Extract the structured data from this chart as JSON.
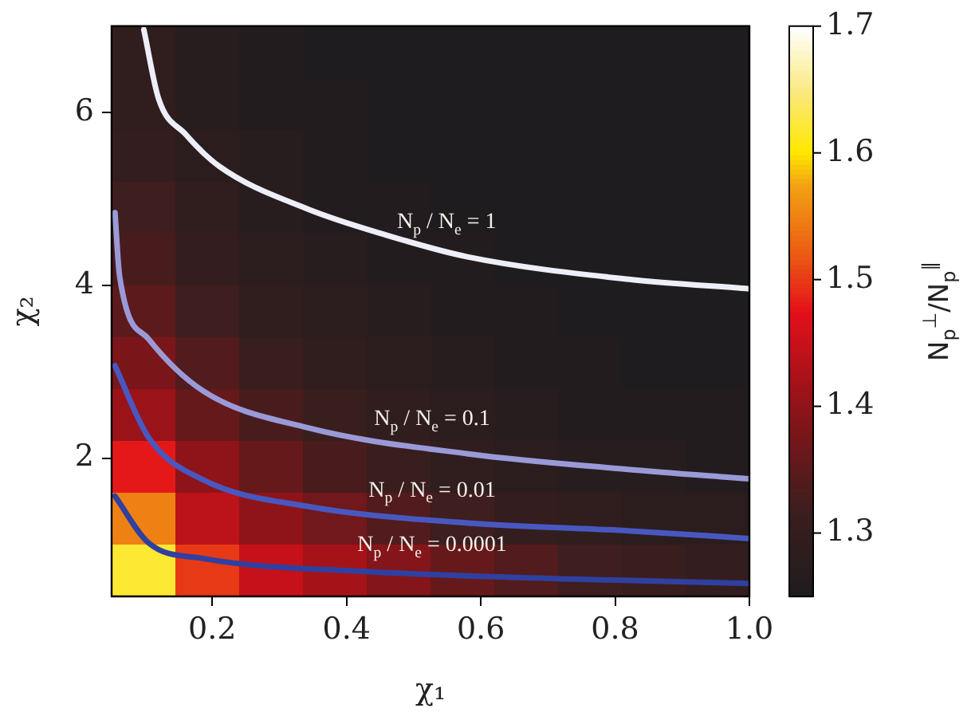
{
  "chart_data": {
    "type": "heatmap",
    "xlabel": "χ₁",
    "ylabel": "χ₂",
    "clabel": "N$_{p}$$^{⊥}$/N$_{p}$$^{∥}$",
    "x": [
      0.0975,
      0.1925,
      0.2875,
      0.3825,
      0.4775,
      0.5725,
      0.6675,
      0.7625,
      0.8575,
      0.9525
    ],
    "xlim": [
      0.05,
      1.0
    ],
    "xticks": [
      {
        "value": 0.2,
        "label": "0.2"
      },
      {
        "value": 0.4,
        "label": "0.4"
      },
      {
        "value": 0.6,
        "label": "0.6"
      },
      {
        "value": 0.8,
        "label": "0.8"
      },
      {
        "value": 1.0,
        "label": "1.0"
      }
    ],
    "ylim": [
      0.4,
      7.0
    ],
    "yticks": [
      2,
      4,
      6
    ],
    "clim": [
      1.25,
      1.7
    ],
    "cticks": [
      {
        "value": 1.3,
        "label": "1.3"
      },
      {
        "value": 1.4,
        "label": "1.4"
      },
      {
        "value": 1.5,
        "label": "1.5"
      },
      {
        "value": 1.6,
        "label": "1.6"
      },
      {
        "value": 1.7,
        "label": "1.7"
      }
    ],
    "cells": [
      [
        1.29,
        1.27,
        1.26,
        1.25,
        1.25,
        1.25,
        1.25,
        1.25,
        1.25,
        1.25
      ],
      [
        1.29,
        1.27,
        1.26,
        1.26,
        1.25,
        1.25,
        1.25,
        1.25,
        1.25,
        1.25
      ],
      [
        1.3,
        1.28,
        1.27,
        1.26,
        1.25,
        1.25,
        1.25,
        1.25,
        1.25,
        1.25
      ],
      [
        1.32,
        1.29,
        1.27,
        1.26,
        1.26,
        1.25,
        1.25,
        1.25,
        1.25,
        1.25
      ],
      [
        1.33,
        1.3,
        1.28,
        1.27,
        1.26,
        1.26,
        1.25,
        1.25,
        1.25,
        1.25
      ],
      [
        1.35,
        1.32,
        1.29,
        1.28,
        1.27,
        1.26,
        1.26,
        1.25,
        1.25,
        1.25
      ],
      [
        1.38,
        1.34,
        1.31,
        1.29,
        1.28,
        1.27,
        1.26,
        1.26,
        1.25,
        1.25
      ],
      [
        1.41,
        1.36,
        1.33,
        1.31,
        1.29,
        1.28,
        1.27,
        1.26,
        1.26,
        1.26
      ],
      [
        1.48,
        1.4,
        1.36,
        1.33,
        1.31,
        1.29,
        1.28,
        1.27,
        1.27,
        1.26
      ],
      [
        1.55,
        1.44,
        1.4,
        1.37,
        1.34,
        1.32,
        1.3,
        1.29,
        1.28,
        1.28
      ],
      [
        1.62,
        1.5,
        1.45,
        1.42,
        1.39,
        1.36,
        1.34,
        1.32,
        1.31,
        1.3
      ]
    ],
    "series": [
      {
        "type": "line",
        "name": "N$_{p}$ / N$_{e}$ = 1",
        "color": "#eeeef8",
        "x": [
          0.098,
          0.12,
          0.16,
          0.21,
          0.34,
          0.46,
          0.58,
          0.82,
          1.0
        ],
        "values": [
          6.96,
          6.16,
          5.75,
          5.38,
          4.89,
          4.58,
          4.33,
          4.07,
          3.96
        ]
      },
      {
        "type": "line",
        "name": "N$_{p}$ / N$_{e}$ = 0.1",
        "color": "#9a9ad8",
        "x": [
          0.055,
          0.062,
          0.105,
          0.186,
          0.343,
          0.581,
          0.819,
          1.0
        ],
        "values": [
          4.84,
          4.1,
          3.38,
          2.78,
          2.35,
          2.05,
          1.87,
          1.76
        ]
      },
      {
        "type": "line",
        "name": "N$_{p}$ / N$_{e}$ = 0.01",
        "color": "#4858c0",
        "x": [
          0.055,
          0.105,
          0.186,
          0.343,
          0.581,
          0.819,
          1.0
        ],
        "values": [
          3.07,
          2.24,
          1.75,
          1.44,
          1.25,
          1.16,
          1.07
        ]
      },
      {
        "type": "line",
        "name": "N$_{p}$ / N$_{e}$ = 0.0001",
        "color": "#3040a0",
        "x": [
          0.055,
          0.105,
          0.186,
          0.424,
          0.74,
          1.0
        ],
        "values": [
          1.56,
          1.02,
          0.84,
          0.69,
          0.6,
          0.55
        ]
      }
    ],
    "legend": false,
    "marker": "none",
    "line_style": "solid"
  }
}
